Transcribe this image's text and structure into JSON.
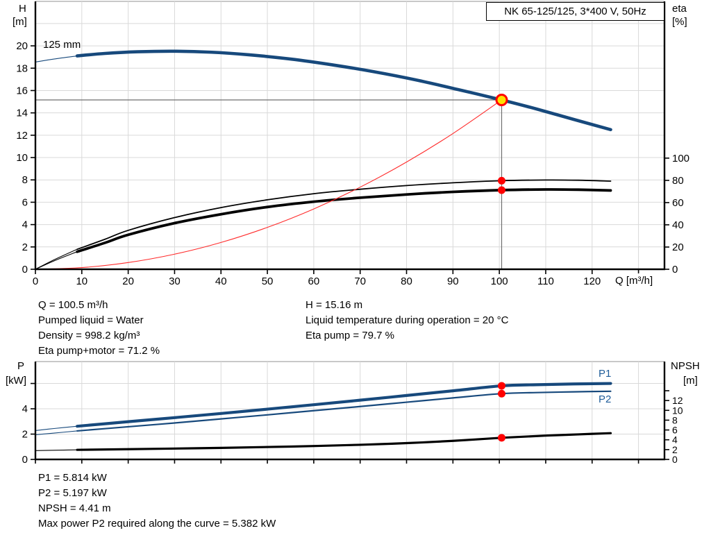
{
  "title_box": {
    "text": "NK 65-125/125, 3*400 V, 50Hz"
  },
  "colors": {
    "head_curve": "#17497c",
    "power_curve": "#17497c",
    "eta_curve": "#000000",
    "npsh_curve": "#000000",
    "system_curve": "#ff2b2b",
    "duty_fill": "#ffe000",
    "duty_ring": "#ff0000",
    "dot_red": "#ff0000",
    "grid": "#d9d9d9",
    "frame_top": "#a8a8a8",
    "guide": "#6e6e6e",
    "axis": "#000000",
    "series_label_blue": "#1f5c99"
  },
  "axis_labels": {
    "top_left_line1": "H",
    "top_left_line2": "[m]",
    "top_right_line1": "eta",
    "top_right_line2": "[%]",
    "x_label": "Q [m³/h]",
    "bottom_left_line1": "P",
    "bottom_left_line2": "[kW]",
    "bottom_right_line1": "NPSH",
    "bottom_right_line2": "[m]"
  },
  "curve_label_125mm": "125 mm",
  "p1_label": "P1",
  "p2_label": "P2",
  "info_top": {
    "left": [
      "Q = 100.5 m³/h",
      "Pumped liquid = Water",
      "Density = 998.2 kg/m³",
      "Eta pump+motor = 71.2 %"
    ],
    "right": [
      "H = 15.16 m",
      "Liquid temperature during operation = 20 °C",
      "Eta pump = 79.7 %"
    ]
  },
  "info_bottom": [
    "P1 = 5.814 kW",
    "P2 = 5.197 kW",
    "NPSH = 4.41 m",
    "Max power P2 required along the curve = 5.382 kW"
  ],
  "chart_data": [
    {
      "id": "top",
      "type": "line",
      "title": "NK 65-125/125, 3*400 V, 50Hz",
      "xlabel": "Q [m³/h]",
      "ylabel_left": "H [m]",
      "ylabel_right": "eta [%]",
      "xlim": [
        0,
        135.6
      ],
      "ylim_left": [
        0,
        23.98
      ],
      "ylim_right": [
        0,
        241
      ],
      "x_ticks": [
        0,
        10,
        20,
        30,
        40,
        50,
        60,
        70,
        80,
        90,
        100,
        110,
        120
      ],
      "x_marks_extra": [
        130
      ],
      "x_grid": [
        10,
        20,
        30,
        40,
        50,
        60,
        70,
        80,
        90,
        100,
        110,
        120,
        130
      ],
      "y_left_ticks": [
        0,
        2,
        4,
        6,
        8,
        10,
        12,
        14,
        16,
        18,
        20
      ],
      "y_left_marks_extra": [],
      "y_left_grid": [
        2,
        4,
        6,
        8,
        10,
        12,
        14,
        16,
        18,
        20,
        22
      ],
      "y_right_ticks": [
        0,
        20,
        40,
        60,
        80,
        100
      ],
      "y_right_marks_extra": [],
      "grid": true,
      "series": [
        {
          "name": "eta-pump",
          "legend": "Eta pump",
          "axis": "right",
          "color": "#000000",
          "segments": [
            {
              "width": 1.1,
              "points": [
                [
                  0,
                  0
                ],
                [
                  4,
                  8.5
                ],
                [
                  9,
                  18
                ]
              ]
            },
            {
              "width": 1.8,
              "points": [
                [
                  9,
                  18
                ],
                [
                  15,
                  27
                ],
                [
                  20,
                  35
                ],
                [
                  30,
                  46.5
                ],
                [
                  40,
                  55.5
                ],
                [
                  50,
                  62.5
                ],
                [
                  60,
                  68
                ],
                [
                  70,
                  72
                ],
                [
                  80,
                  75.3
                ],
                [
                  90,
                  77.8
                ],
                [
                  100.5,
                  79.7
                ],
                [
                  110,
                  80.3
                ],
                [
                  117,
                  80.1
                ],
                [
                  124,
                  79.3
                ]
              ]
            }
          ]
        },
        {
          "name": "eta-pump-motor",
          "legend": "Eta pump+motor",
          "axis": "right",
          "color": "#000000",
          "segments": [
            {
              "width": 1.1,
              "points": [
                [
                  0,
                  0
                ],
                [
                  4,
                  7.5
                ],
                [
                  9,
                  15.8
                ]
              ]
            },
            {
              "width": 3.8,
              "points": [
                [
                  9,
                  15.8
                ],
                [
                  15,
                  23.8
                ],
                [
                  20,
                  31
                ],
                [
                  30,
                  41.5
                ],
                [
                  40,
                  49.5
                ],
                [
                  50,
                  56
                ],
                [
                  60,
                  60.8
                ],
                [
                  70,
                  64.4
                ],
                [
                  80,
                  67.3
                ],
                [
                  90,
                  69.6
                ],
                [
                  100.5,
                  71.2
                ],
                [
                  110,
                  71.8
                ],
                [
                  117,
                  71.6
                ],
                [
                  124,
                  70.9
                ]
              ]
            }
          ]
        },
        {
          "name": "system-curve",
          "legend": "System curve",
          "axis": "left",
          "color": "#ff2b2b",
          "segments": [
            {
              "width": 1.1,
              "points": [
                [
                  0,
                  0
                ],
                [
                  10,
                  0.15
                ],
                [
                  20,
                  0.6
                ],
                [
                  30,
                  1.35
                ],
                [
                  40,
                  2.4
                ],
                [
                  50,
                  3.75
                ],
                [
                  60,
                  5.4
                ],
                [
                  70,
                  7.35
                ],
                [
                  80,
                  9.6
                ],
                [
                  90,
                  12.15
                ],
                [
                  100.5,
                  15.16
                ]
              ]
            }
          ]
        },
        {
          "name": "head-125mm",
          "legend": "125 mm",
          "axis": "left",
          "color": "#17497c",
          "segments": [
            {
              "width": 1.2,
              "points": [
                [
                  0,
                  18.55
                ],
                [
                  4,
                  18.82
                ],
                [
                  9,
                  19.1
                ]
              ]
            },
            {
              "width": 4.6,
              "points": [
                [
                  9,
                  19.1
                ],
                [
                  15,
                  19.32
                ],
                [
                  22,
                  19.47
                ],
                [
                  30,
                  19.52
                ],
                [
                  38,
                  19.43
                ],
                [
                  46,
                  19.2
                ],
                [
                  55,
                  18.82
                ],
                [
                  64,
                  18.3
                ],
                [
                  73,
                  17.68
                ],
                [
                  82,
                  16.95
                ],
                [
                  91,
                  16.1
                ],
                [
                  100.5,
                  15.16
                ],
                [
                  108,
                  14.35
                ],
                [
                  116,
                  13.42
                ],
                [
                  124,
                  12.5
                ]
              ]
            }
          ]
        }
      ],
      "guides": [
        {
          "type": "h",
          "value": 15.16,
          "q_from": 0,
          "q_to": 100.5
        },
        {
          "type": "v",
          "q": 100.5,
          "v_from": 0,
          "v_to": 15.16
        }
      ],
      "markers": [
        {
          "type": "duty",
          "axis": "left",
          "q": 100.5,
          "v": 15.16
        },
        {
          "type": "dot",
          "axis": "right",
          "q": 100.5,
          "v": 79.7
        },
        {
          "type": "dot",
          "axis": "right",
          "q": 100.5,
          "v": 71.2
        }
      ],
      "duty_point": {
        "Q_m3h": 100.5,
        "H_m": 15.16,
        "eta_pump_pct": 79.7,
        "eta_pump_motor_pct": 71.2
      }
    },
    {
      "id": "bottom",
      "type": "line",
      "title": "",
      "xlabel": "",
      "ylabel_left": "P [kW]",
      "ylabel_right": "NPSH [m]",
      "xlim": [
        0,
        135.6
      ],
      "ylim_left": [
        0,
        7.73
      ],
      "ylim_right": [
        0,
        19.94
      ],
      "x_ticks": [],
      "x_marks_extra": [
        0,
        10,
        20,
        30,
        40,
        50,
        60,
        70,
        80,
        90,
        100,
        110,
        120,
        130
      ],
      "x_grid": [
        10,
        20,
        30,
        40,
        50,
        60,
        70,
        80,
        90,
        100,
        110,
        120,
        130
      ],
      "y_left_ticks": [
        0,
        2,
        4
      ],
      "y_left_marks_extra": [
        6
      ],
      "y_left_grid": [
        2,
        4,
        6
      ],
      "y_right_ticks": [
        0,
        2,
        4,
        6,
        8,
        10,
        12
      ],
      "y_right_marks_extra": [
        14
      ],
      "grid": true,
      "series": [
        {
          "name": "npsh",
          "legend": "NPSH",
          "axis": "right",
          "color": "#000000",
          "segments": [
            {
              "width": 1.1,
              "points": [
                [
                  0,
                  1.8
                ],
                [
                  4,
                  1.87
                ],
                [
                  9,
                  1.95
                ]
              ]
            },
            {
              "width": 3.2,
              "points": [
                [
                  9,
                  1.95
                ],
                [
                  25,
                  2.15
                ],
                [
                  40,
                  2.35
                ],
                [
                  55,
                  2.62
                ],
                [
                  70,
                  2.98
                ],
                [
                  80,
                  3.32
                ],
                [
                  90,
                  3.78
                ],
                [
                  100.5,
                  4.41
                ],
                [
                  110,
                  4.85
                ],
                [
                  117,
                  5.1
                ],
                [
                  124,
                  5.35
                ]
              ]
            }
          ]
        },
        {
          "name": "p2",
          "legend": "P2",
          "axis": "left",
          "color": "#17497c",
          "segments": [
            {
              "width": 1.1,
              "points": [
                [
                  0,
                  1.95
                ],
                [
                  4,
                  2.08
                ],
                [
                  9,
                  2.25
                ]
              ]
            },
            {
              "width": 2.2,
              "points": [
                [
                  9,
                  2.25
                ],
                [
                  20,
                  2.58
                ],
                [
                  30,
                  2.88
                ],
                [
                  40,
                  3.2
                ],
                [
                  50,
                  3.52
                ],
                [
                  60,
                  3.85
                ],
                [
                  70,
                  4.18
                ],
                [
                  80,
                  4.52
                ],
                [
                  90,
                  4.86
                ],
                [
                  100.5,
                  5.197
                ],
                [
                  108,
                  5.28
                ],
                [
                  116,
                  5.34
                ],
                [
                  124,
                  5.382
                ]
              ]
            }
          ]
        },
        {
          "name": "p1",
          "legend": "P1",
          "axis": "left",
          "color": "#17497c",
          "segments": [
            {
              "width": 1.1,
              "points": [
                [
                  0,
                  2.28
                ],
                [
                  4,
                  2.44
                ],
                [
                  9,
                  2.62
                ]
              ]
            },
            {
              "width": 4.2,
              "points": [
                [
                  9,
                  2.62
                ],
                [
                  20,
                  2.98
                ],
                [
                  30,
                  3.3
                ],
                [
                  40,
                  3.63
                ],
                [
                  50,
                  3.97
                ],
                [
                  60,
                  4.32
                ],
                [
                  70,
                  4.68
                ],
                [
                  80,
                  5.05
                ],
                [
                  90,
                  5.42
                ],
                [
                  100.5,
                  5.814
                ],
                [
                  108,
                  5.9
                ],
                [
                  116,
                  5.96
                ],
                [
                  124,
                  6.0
                ]
              ]
            }
          ]
        }
      ],
      "guides": [],
      "markers": [
        {
          "type": "dot",
          "axis": "left",
          "q": 100.5,
          "v": 5.814
        },
        {
          "type": "dot",
          "axis": "left",
          "q": 100.5,
          "v": 5.197
        },
        {
          "type": "dot",
          "axis": "right",
          "q": 100.5,
          "v": 4.41
        }
      ],
      "duty_point": {
        "Q_m3h": 100.5,
        "P1_kW": 5.814,
        "P2_kW": 5.197,
        "NPSH_m": 4.41
      }
    }
  ]
}
